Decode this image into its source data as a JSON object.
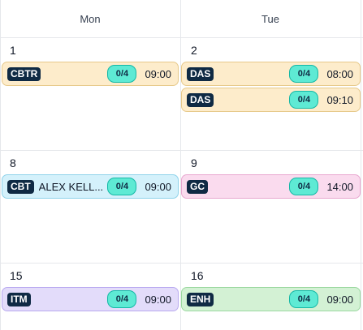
{
  "headers": [
    "Mon",
    "Tue"
  ],
  "weeks": [
    {
      "mon": {
        "date": "1",
        "events": [
          {
            "tag": "CBTR",
            "name": "",
            "count": "0/4",
            "time": "09:00",
            "color": "orange"
          }
        ]
      },
      "tue": {
        "date": "2",
        "events": [
          {
            "tag": "DAS",
            "name": "",
            "count": "0/4",
            "time": "08:00",
            "color": "orange"
          },
          {
            "tag": "DAS",
            "name": "",
            "count": "0/4",
            "time": "09:10",
            "color": "orange"
          }
        ]
      }
    },
    {
      "mon": {
        "date": "8",
        "events": [
          {
            "tag": "CBT",
            "name": "ALEX KELL...",
            "count": "0/4",
            "time": "09:00",
            "color": "blue"
          }
        ]
      },
      "tue": {
        "date": "9",
        "events": [
          {
            "tag": "GC",
            "name": "",
            "count": "0/4",
            "time": "14:00",
            "color": "pink"
          }
        ]
      }
    },
    {
      "mon": {
        "date": "15",
        "events": [
          {
            "tag": "ITM",
            "name": "",
            "count": "0/4",
            "time": "09:00",
            "color": "purple"
          }
        ]
      },
      "tue": {
        "date": "16",
        "events": [
          {
            "tag": "ENH",
            "name": "",
            "count": "0/4",
            "time": "09:00",
            "color": "green"
          }
        ]
      }
    }
  ],
  "colors": {
    "orange": "#fdeccb",
    "blue": "#d4f1fb",
    "pink": "#fadbee",
    "purple": "#e3dcfa",
    "green": "#d3f1d4",
    "tag_bg": "#0f2a44",
    "count_bg": "#5eead4"
  }
}
